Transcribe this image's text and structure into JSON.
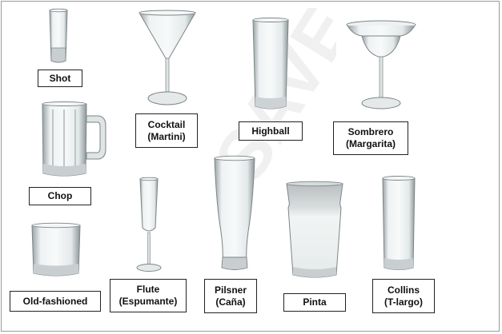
{
  "glasses": [
    {
      "name": "Shot",
      "sub": ""
    },
    {
      "name": "Cocktail",
      "sub": "(Martini)"
    },
    {
      "name": "Highball",
      "sub": ""
    },
    {
      "name": "Sombrero",
      "sub": "(Margarita)"
    },
    {
      "name": "Chop",
      "sub": ""
    },
    {
      "name": "Flute",
      "sub": "(Espumante)"
    },
    {
      "name": "Pilsner",
      "sub": "(Caña)"
    },
    {
      "name": "Pinta",
      "sub": ""
    },
    {
      "name": "Collins",
      "sub": "(T-largo)"
    },
    {
      "name": "Old-fashioned",
      "sub": ""
    }
  ],
  "watermark": {
    "text": "SAVE"
  }
}
